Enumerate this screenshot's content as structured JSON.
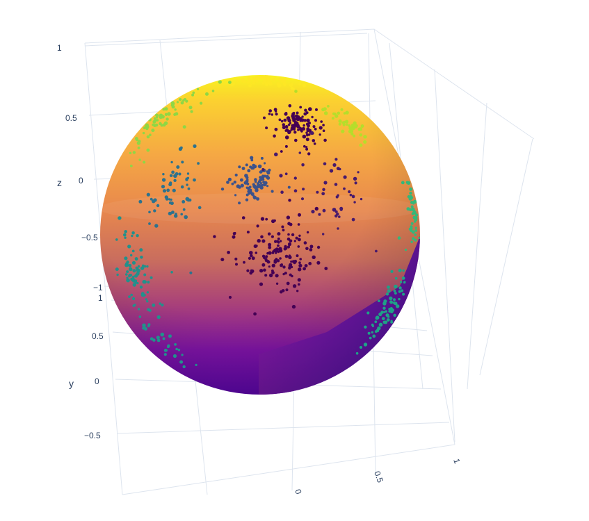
{
  "chart_data": {
    "type": "scatter3d",
    "subtype": "unit sphere surface with clustered point cloud",
    "title": "",
    "axes": {
      "x": {
        "label": "",
        "ticks": [
          "0",
          "0.5",
          "1"
        ],
        "range": [
          -1,
          1
        ]
      },
      "y": {
        "label": "y",
        "ticks": [
          "1",
          "0.5",
          "0",
          "−0.5"
        ],
        "range": [
          -1,
          1
        ]
      },
      "z": {
        "label": "z",
        "ticks": [
          "1",
          "0.5",
          "0",
          "−0.5",
          "−1"
        ],
        "range": [
          -1,
          1
        ]
      }
    },
    "grid": true,
    "surface": {
      "shape": "sphere",
      "radius": 1,
      "colorscale": "plasma"
    },
    "series": [
      {
        "color": "#fde725",
        "center": [
          0.05,
          0.25,
          0.96
        ],
        "spread": 0.1,
        "count": 60
      },
      {
        "color": "#8fd744",
        "center": [
          -0.62,
          0.3,
          0.72
        ],
        "spread": 0.16,
        "count": 70
      },
      {
        "color": "#b5de2b",
        "center": [
          0.55,
          0.45,
          0.7
        ],
        "spread": 0.1,
        "count": 40
      },
      {
        "color": "#3b528b",
        "center": [
          -0.05,
          0.94,
          0.33
        ],
        "spread": 0.07,
        "count": 90
      },
      {
        "color": "#2c728e",
        "center": [
          -0.55,
          0.78,
          0.28
        ],
        "spread": 0.12,
        "count": 60
      },
      {
        "color": "#21918c",
        "center": [
          -0.78,
          0.56,
          -0.25
        ],
        "spread": 0.13,
        "count": 80
      },
      {
        "color": "#440154",
        "center": [
          0.32,
          0.9,
          0.92
        ],
        "spread": 0.12,
        "count": 110
      },
      {
        "color": "#440154",
        "center": [
          0.12,
          0.96,
          -0.12
        ],
        "spread": 0.13,
        "count": 150
      },
      {
        "color": "#481a6c",
        "center": [
          0.42,
          0.88,
          0.25
        ],
        "spread": 0.18,
        "count": 50
      },
      {
        "color": "#1fa187",
        "center": [
          0.78,
          0.35,
          -0.45
        ],
        "spread": 0.12,
        "count": 70
      },
      {
        "color": "#35b779",
        "center": [
          0.88,
          0.25,
          0.1
        ],
        "spread": 0.1,
        "count": 40
      },
      {
        "color": "#21918c",
        "center": [
          -0.6,
          0.4,
          -0.65
        ],
        "spread": 0.12,
        "count": 30
      }
    ]
  }
}
